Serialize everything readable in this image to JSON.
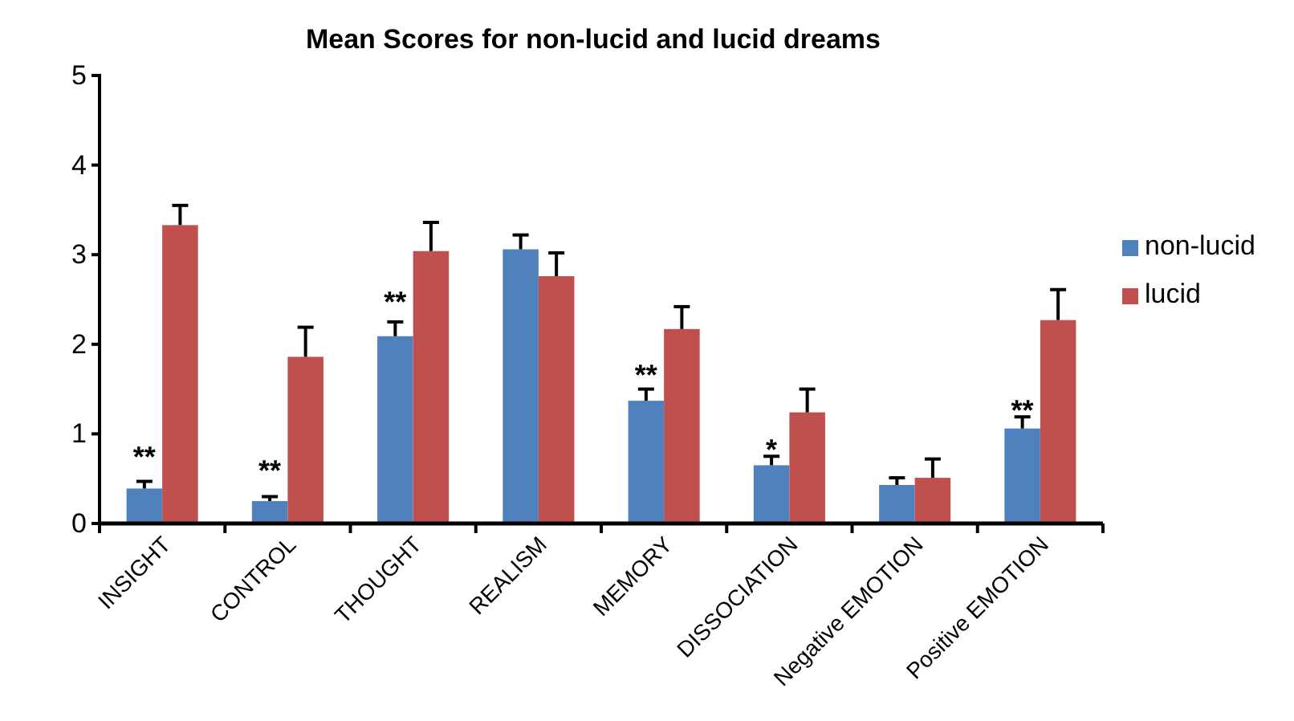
{
  "chart_data": {
    "type": "bar",
    "title": "Mean Scores for non-lucid and lucid dreams",
    "categories": [
      "INSIGHT",
      "CONTROL",
      "THOUGHT",
      "REALISM",
      "MEMORY",
      "DISSOCIATION",
      "Negative EMOTION",
      "Positive EMOTION"
    ],
    "series": [
      {
        "name": "non-lucid",
        "color": "#4f81bd",
        "values": [
          0.39,
          0.25,
          2.09,
          3.06,
          1.37,
          0.65,
          0.43,
          1.06
        ],
        "errors": [
          [
            0.39,
            0.47
          ],
          [
            0.25,
            0.3
          ],
          [
            2.09,
            2.25
          ],
          [
            3.06,
            3.22
          ],
          [
            1.37,
            1.5
          ],
          [
            0.65,
            0.75
          ],
          [
            0.43,
            0.51
          ],
          [
            1.06,
            1.19
          ]
        ]
      },
      {
        "name": "lucid",
        "color": "#c0504d",
        "values": [
          3.33,
          1.86,
          3.04,
          2.76,
          2.17,
          1.24,
          0.51,
          2.27
        ],
        "errors": [
          [
            3.33,
            3.55
          ],
          [
            1.86,
            2.19
          ],
          [
            3.04,
            3.36
          ],
          [
            2.76,
            3.02
          ],
          [
            2.17,
            2.42
          ],
          [
            1.24,
            1.5
          ],
          [
            0.51,
            0.72
          ],
          [
            2.27,
            2.61
          ]
        ]
      }
    ],
    "ylim": [
      0,
      5
    ],
    "yticks": [
      0,
      1,
      2,
      3,
      4,
      5
    ],
    "grid": false,
    "legend": "right",
    "annotations": [
      {
        "text": "**",
        "x": "INSIGHT",
        "y": 0.83
      },
      {
        "text": "**",
        "x": "CONTROL",
        "y": 0.68
      },
      {
        "text": "**",
        "x": "THOUGHT",
        "y": 2.56
      },
      {
        "text": "**",
        "x": "MEMORY",
        "y": 1.74
      },
      {
        "text": "*",
        "x": "DISSOCIATION",
        "y": 0.91
      },
      {
        "text": "**",
        "x": "Positive EMOTION",
        "y": 1.35
      }
    ]
  }
}
